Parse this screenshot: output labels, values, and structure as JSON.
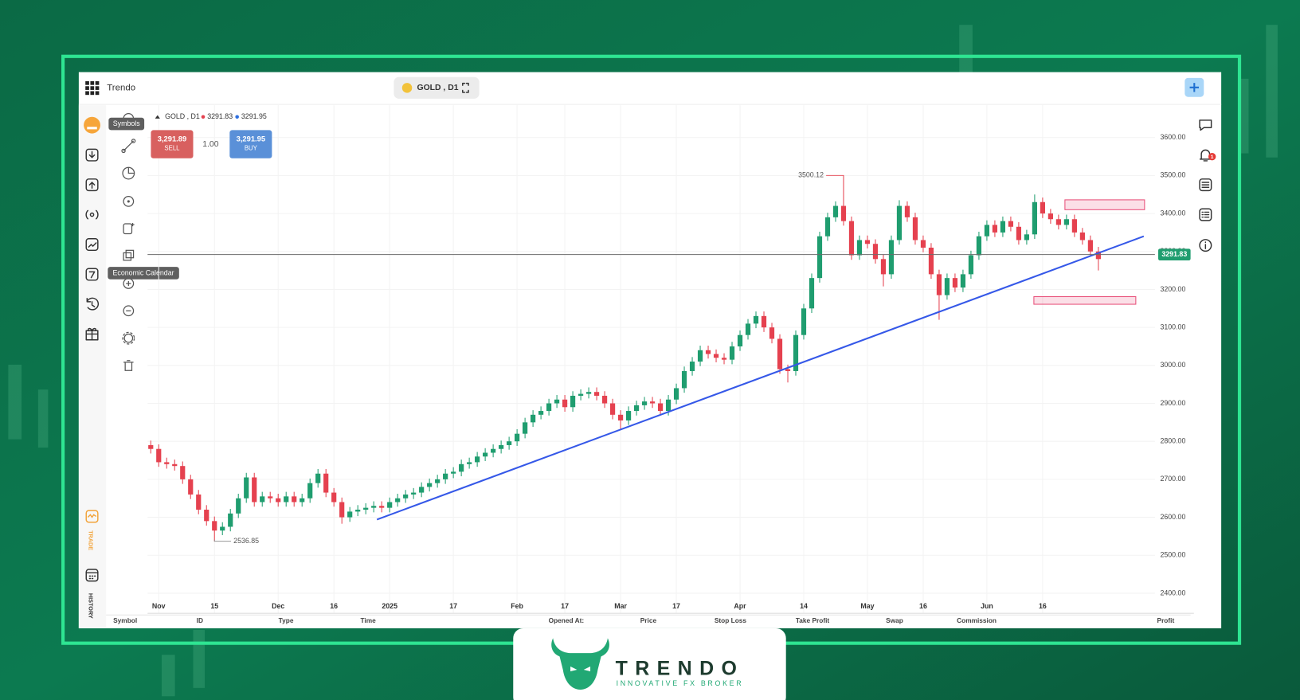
{
  "header": {
    "app_name": "Trendo",
    "symbol_tab": "GOLD , D1"
  },
  "legend": {
    "symbol": "GOLD , D1",
    "ask": "3291.95"
  },
  "trade_panel": {
    "sell_price": "3,291.89",
    "sell_label": "SELL",
    "volume": "1.00",
    "buy_price": "3,291.95",
    "buy_label": "BUY"
  },
  "tooltips": {
    "symbols": "Symbols",
    "economic_calendar": "Economic Calendar"
  },
  "sidebar": {
    "trade": "TRADE",
    "history": "HISTORY",
    "notification_count": "1"
  },
  "table": {
    "columns": [
      "Symbol",
      "ID",
      "Type",
      "Time",
      "Opened At:",
      "Price",
      "Stop Loss",
      "Take Profit",
      "Swap",
      "Commission",
      "Profit"
    ]
  },
  "logo": {
    "name": "TRENDO",
    "tagline": "INNOVATIVE FX BROKER"
  },
  "chart_data": {
    "type": "candlestick",
    "up_color": "#1f9d6f",
    "down_color": "#e5414f",
    "open": [
      2790,
      2780,
      2745,
      2740,
      2735,
      2700,
      2660,
      2620,
      2590,
      2565,
      2575,
      2610,
      2650,
      2705,
      2640,
      2655,
      2650,
      2640,
      2655,
      2640,
      2650,
      2690,
      2715,
      2665,
      2640,
      2600,
      2615,
      2620,
      2625,
      2630,
      2625,
      2640,
      2650,
      2660,
      2665,
      2680,
      2690,
      2700,
      2715,
      2720,
      2740,
      2745,
      2760,
      2770,
      2780,
      2790,
      2800,
      2820,
      2850,
      2870,
      2880,
      2900,
      2910,
      2890,
      2920,
      2925,
      2930,
      2920,
      2900,
      2870,
      2855,
      2880,
      2895,
      2905,
      2900,
      2880,
      2910,
      2940,
      2985,
      3010,
      3040,
      3030,
      3020,
      3015,
      3050,
      3080,
      3110,
      3130,
      3100,
      3070,
      2990,
      2985,
      3080,
      3150,
      3230,
      3340,
      3390,
      3420,
      3380,
      3290,
      3330,
      3320,
      3280,
      3240,
      3330,
      3420,
      3390,
      3330,
      3310,
      3240,
      3185,
      3230,
      3205,
      3240,
      3290,
      3340,
      3370,
      3350,
      3380,
      3365,
      3330,
      3345,
      3430,
      3400,
      3385,
      3370,
      3385,
      3350,
      3330,
      3300
    ],
    "high": [
      2802,
      2792,
      2757,
      2752,
      2747,
      2712,
      2672,
      2632,
      2602,
      2587,
      2622,
      2662,
      2717,
      2717,
      2667,
      2667,
      2662,
      2667,
      2667,
      2662,
      2702,
      2727,
      2727,
      2677,
      2652,
      2627,
      2632,
      2637,
      2642,
      2642,
      2652,
      2662,
      2672,
      2677,
      2692,
      2702,
      2712,
      2727,
      2732,
      2752,
      2757,
      2772,
      2782,
      2792,
      2802,
      2812,
      2832,
      2862,
      2882,
      2892,
      2912,
      2922,
      2922,
      2932,
      2937,
      2942,
      2942,
      2932,
      2912,
      2882,
      2892,
      2907,
      2917,
      2917,
      2912,
      2922,
      2952,
      2997,
      3022,
      3052,
      3052,
      3042,
      3032,
      3062,
      3092,
      3122,
      3142,
      3142,
      3112,
      3082,
      3002,
      3092,
      3162,
      3242,
      3352,
      3402,
      3432,
      3500.12,
      3392,
      3342,
      3342,
      3332,
      3292,
      3342,
      3435,
      3432,
      3402,
      3342,
      3322,
      3252,
      3242,
      3242,
      3252,
      3302,
      3352,
      3382,
      3382,
      3392,
      3392,
      3377,
      3357,
      3450,
      3442,
      3412,
      3397,
      3397,
      3397,
      3362,
      3342,
      3312
    ],
    "low": [
      2768,
      2733,
      2728,
      2723,
      2688,
      2648,
      2608,
      2578,
      2536.85,
      2553,
      2563,
      2598,
      2638,
      2628,
      2628,
      2638,
      2628,
      2628,
      2628,
      2628,
      2638,
      2678,
      2653,
      2628,
      2583,
      2588,
      2603,
      2608,
      2613,
      2613,
      2613,
      2628,
      2638,
      2648,
      2653,
      2668,
      2678,
      2688,
      2703,
      2708,
      2728,
      2733,
      2748,
      2758,
      2768,
      2778,
      2788,
      2808,
      2838,
      2858,
      2868,
      2888,
      2878,
      2878,
      2908,
      2913,
      2908,
      2888,
      2858,
      2830,
      2843,
      2868,
      2883,
      2888,
      2868,
      2868,
      2898,
      2928,
      2973,
      2998,
      3018,
      3008,
      3003,
      3003,
      3038,
      3068,
      3098,
      3088,
      3058,
      2978,
      2955,
      2973,
      3068,
      3138,
      3218,
      3328,
      3378,
      3368,
      3278,
      3278,
      3308,
      3268,
      3208,
      3228,
      3318,
      3378,
      3318,
      3298,
      3228,
      3120,
      3173,
      3193,
      3193,
      3228,
      3278,
      3328,
      3338,
      3338,
      3353,
      3318,
      3318,
      3333,
      3388,
      3373,
      3358,
      3358,
      3338,
      3318,
      3288,
      3250
    ],
    "close": [
      2780,
      2745,
      2740,
      2735,
      2700,
      2660,
      2620,
      2590,
      2565,
      2575,
      2610,
      2650,
      2705,
      2640,
      2655,
      2650,
      2640,
      2655,
      2640,
      2650,
      2690,
      2715,
      2665,
      2640,
      2600,
      2615,
      2620,
      2625,
      2630,
      2625,
      2640,
      2650,
      2660,
      2665,
      2680,
      2690,
      2700,
      2715,
      2720,
      2740,
      2745,
      2760,
      2770,
      2780,
      2790,
      2800,
      2820,
      2850,
      2870,
      2880,
      2900,
      2910,
      2890,
      2920,
      2925,
      2930,
      2920,
      2900,
      2870,
      2855,
      2880,
      2895,
      2905,
      2900,
      2880,
      2910,
      2940,
      2985,
      3010,
      3040,
      3030,
      3020,
      3015,
      3050,
      3080,
      3110,
      3130,
      3100,
      3070,
      2990,
      2985,
      3080,
      3150,
      3230,
      3340,
      3390,
      3420,
      3380,
      3290,
      3330,
      3320,
      3280,
      3240,
      3330,
      3420,
      3390,
      3330,
      3310,
      3240,
      3185,
      3230,
      3205,
      3240,
      3290,
      3340,
      3370,
      3350,
      3380,
      3365,
      3330,
      3345,
      3430,
      3400,
      3385,
      3370,
      3385,
      3350,
      3330,
      3300,
      3280
    ],
    "xlim": [
      -0.4,
      126.1
    ],
    "xticks": [
      {
        "value": 1,
        "label": "Nov"
      },
      {
        "value": 8,
        "label": "15"
      },
      {
        "value": 16,
        "label": "Dec"
      },
      {
        "value": 23,
        "label": "16"
      },
      {
        "value": 30,
        "label": "2025"
      },
      {
        "value": 38,
        "label": "17"
      },
      {
        "value": 46,
        "label": "Feb"
      },
      {
        "value": 52,
        "label": "17"
      },
      {
        "value": 59,
        "label": "Mar"
      },
      {
        "value": 66,
        "label": "17"
      },
      {
        "value": 74,
        "label": "Apr"
      },
      {
        "value": 82,
        "label": "14"
      },
      {
        "value": 90,
        "label": "May"
      },
      {
        "value": 97,
        "label": "16"
      },
      {
        "value": 105,
        "label": "Jun"
      },
      {
        "value": 112,
        "label": "16"
      }
    ],
    "ylim": [
      2347,
      3685
    ],
    "yticks": [
      {
        "value": 2400,
        "label": "2400.00"
      },
      {
        "value": 2500,
        "label": "2500.00"
      },
      {
        "value": 2600,
        "label": "2600.00"
      },
      {
        "value": 2700,
        "label": "2700.00"
      },
      {
        "value": 2800,
        "label": "2800.00"
      },
      {
        "value": 2900,
        "label": "2900.00"
      },
      {
        "value": 3000,
        "label": "3000.00"
      },
      {
        "value": 3100,
        "label": "3100.00"
      },
      {
        "value": 3200,
        "label": "3200.00"
      },
      {
        "value": 3300,
        "label": "3300.00"
      },
      {
        "value": 3400,
        "label": "3400.00"
      },
      {
        "value": 3500,
        "label": "3500.00"
      },
      {
        "value": 3600,
        "label": "3600.00"
      }
    ],
    "grid": true,
    "last_price": 3291.83,
    "trendline": {
      "color": "#3558e8",
      "x": [
        28.4,
        124.7
      ],
      "values": [
        2594,
        3340
      ]
    },
    "zones": [
      {
        "color": "#e8507a",
        "x": [
          114.8,
          124.8
        ],
        "values": [
          3410,
          3436
        ]
      },
      {
        "color": "#e8507a",
        "x": [
          110.9,
          123.7
        ],
        "values": [
          3161,
          3181
        ]
      }
    ]
  }
}
